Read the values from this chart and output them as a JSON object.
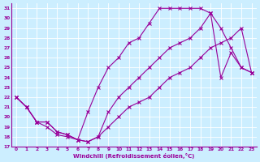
{
  "xlabel": "Windchill (Refroidissement éolien,°C)",
  "bg_color": "#cceeff",
  "grid_color": "#ffffff",
  "line_color": "#990099",
  "xlim": [
    -0.5,
    23.5
  ],
  "ylim": [
    17,
    31.5
  ],
  "xticks": [
    0,
    1,
    2,
    3,
    4,
    5,
    6,
    7,
    8,
    9,
    10,
    11,
    12,
    13,
    14,
    15,
    16,
    17,
    18,
    19,
    20,
    21,
    22,
    23
  ],
  "yticks": [
    17,
    18,
    19,
    20,
    21,
    22,
    23,
    24,
    25,
    26,
    27,
    28,
    29,
    30,
    31
  ],
  "series1_x": [
    0,
    1,
    2,
    3,
    4,
    5,
    6,
    7,
    8,
    9,
    10,
    11,
    12,
    13,
    14,
    15,
    16,
    17,
    18,
    19,
    20,
    21,
    22,
    23
  ],
  "series1_y": [
    22,
    21,
    19.5,
    19,
    18.2,
    18,
    17.7,
    17.5,
    18,
    20.5,
    22,
    23,
    24,
    25,
    26,
    27,
    27.5,
    28,
    29,
    30.5,
    24,
    26.5,
    25,
    24.5
  ],
  "series2_x": [
    0,
    1,
    2,
    3,
    4,
    5,
    6,
    7,
    8,
    9,
    10,
    11,
    12,
    13,
    14,
    15,
    16,
    17,
    18,
    19,
    20,
    21,
    22,
    23
  ],
  "series2_y": [
    22,
    21,
    19.5,
    19.5,
    18.5,
    18.2,
    17.7,
    20.5,
    23,
    25,
    26,
    27.5,
    28,
    29.5,
    31,
    31,
    31,
    31,
    31,
    30.5,
    29,
    27,
    25,
    24.5
  ],
  "series3_x": [
    0,
    1,
    2,
    3,
    4,
    5,
    6,
    7,
    8,
    9,
    10,
    11,
    12,
    13,
    14,
    15,
    16,
    17,
    18,
    19,
    20,
    21,
    22,
    23
  ],
  "series3_y": [
    22,
    21,
    19.5,
    19.5,
    18.5,
    18.2,
    17.7,
    17.5,
    18,
    19,
    20,
    21,
    21.5,
    22,
    23,
    24,
    24.5,
    25,
    26,
    27,
    27.5,
    28,
    29,
    24.5
  ]
}
